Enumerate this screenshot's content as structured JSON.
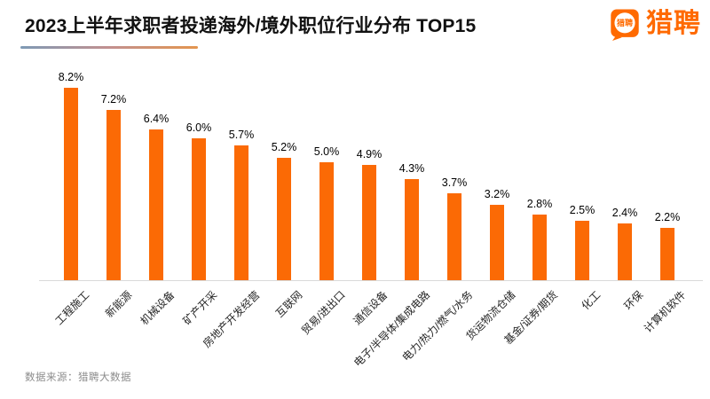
{
  "page": {
    "background": "#FFFFFF"
  },
  "header": {
    "title": "2023上半年求职者投递海外/境外职位行业分布 TOP15",
    "underline_gradient": [
      "#7E9AB5",
      "#E3954E"
    ],
    "logo": {
      "icon_label": "猎聘",
      "wordmark": "猎聘",
      "brand_color": "#FF6A00"
    }
  },
  "chart_data": {
    "type": "bar",
    "title": "2023上半年求职者投递海外/境外职位行业分布 TOP15",
    "categories": [
      "工程施工",
      "新能源",
      "机械设备",
      "矿产开采",
      "房地产开发经营",
      "互联网",
      "贸易/进出口",
      "通信设备",
      "电子/半导体/集成电路",
      "电力/热力/燃气/水务",
      "货运物流仓储",
      "基金/证券/期货",
      "化工",
      "环保",
      "计算机软件"
    ],
    "values": [
      8.2,
      7.2,
      6.4,
      6.0,
      5.7,
      5.2,
      5.0,
      4.9,
      4.3,
      3.7,
      3.2,
      2.8,
      2.5,
      2.4,
      2.2
    ],
    "value_labels": [
      "8.2%",
      "7.2%",
      "6.4%",
      "6.0%",
      "5.7%",
      "5.2%",
      "5.0%",
      "4.9%",
      "4.3%",
      "3.7%",
      "3.2%",
      "2.8%",
      "2.5%",
      "2.4%",
      "2.2%"
    ],
    "unit": "%",
    "ylim": [
      0,
      8.9
    ],
    "grid": false,
    "legend": "none",
    "bar_color": "#FB6A05",
    "axis_line_color": "#D9D9D9",
    "x_tick_rotation": 45,
    "value_label_position": "above"
  },
  "footer": {
    "source": "数据来源：猎聘大数据"
  }
}
